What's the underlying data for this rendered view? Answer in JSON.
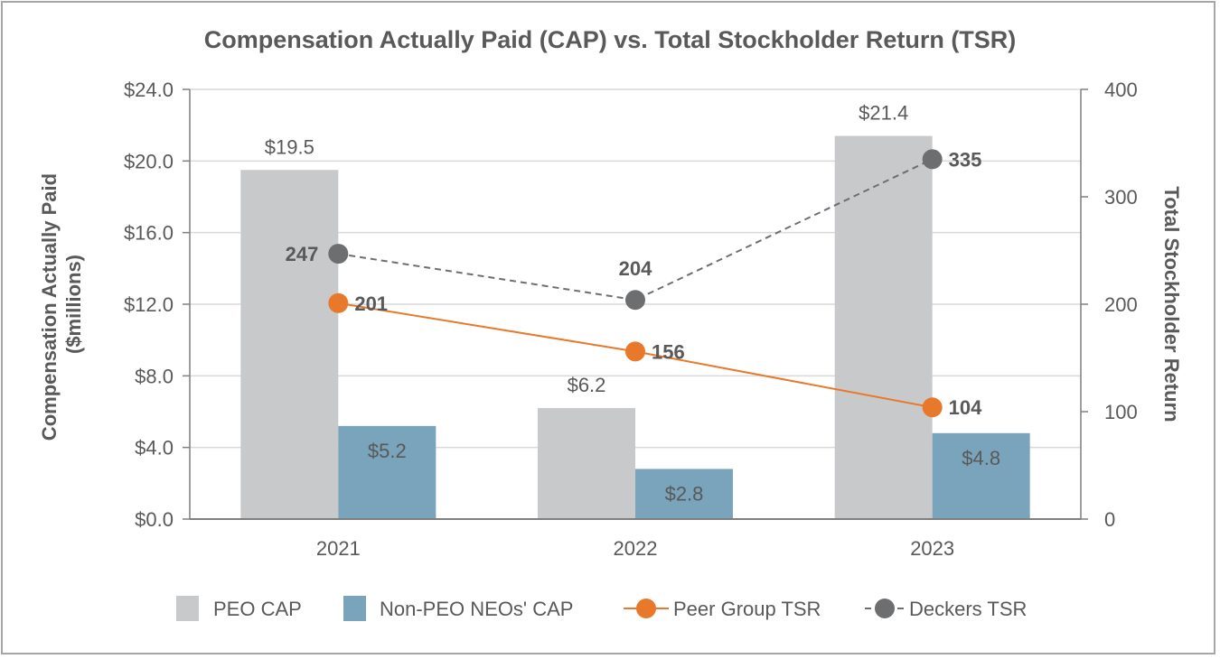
{
  "chart_data": {
    "type": "bar",
    "title": "Compensation Actually Paid (CAP) vs. Total Stockholder Return (TSR)",
    "categories": [
      "2021",
      "2022",
      "2023"
    ],
    "ylabel": "Compensation Actually Paid ($millions)",
    "ylabel_line1": "Compensation Actually Paid",
    "ylabel_line2": "($millions)",
    "y2label": "Total Stockholder Return",
    "ylim": [
      0,
      24
    ],
    "y2lim": [
      0,
      400
    ],
    "yticks": [
      "$0.0",
      "$4.0",
      "$8.0",
      "$12.0",
      "$16.0",
      "$20.0",
      "$24.0"
    ],
    "y2ticks": [
      "0",
      "100",
      "200",
      "300",
      "400"
    ],
    "bar_series": [
      {
        "name": "PEO CAP",
        "color": "#c8c9cb",
        "values": [
          19.5,
          6.2,
          21.4
        ],
        "labels": [
          "$19.5",
          "$6.2",
          "$21.4"
        ]
      },
      {
        "name": "Non-PEO NEOs' CAP",
        "color": "#7aa3bc",
        "values": [
          5.2,
          2.8,
          4.8
        ],
        "labels": [
          "$5.2",
          "$2.8",
          "$4.8"
        ]
      }
    ],
    "line_series": [
      {
        "name": "Peer Group TSR",
        "color": "#e8782a",
        "dash": false,
        "values": [
          201,
          156,
          104
        ],
        "labels": [
          "201",
          "156",
          "104"
        ]
      },
      {
        "name": "Deckers TSR",
        "color": "#6d6e70",
        "dash": true,
        "values": [
          247,
          204,
          335
        ],
        "labels": [
          "247",
          "204",
          "335"
        ]
      }
    ],
    "legend": [
      "PEO CAP",
      "Non-PEO NEOs' CAP",
      "Peer Group TSR",
      "Deckers TSR"
    ],
    "legend_position": "bottom",
    "grid": true
  }
}
